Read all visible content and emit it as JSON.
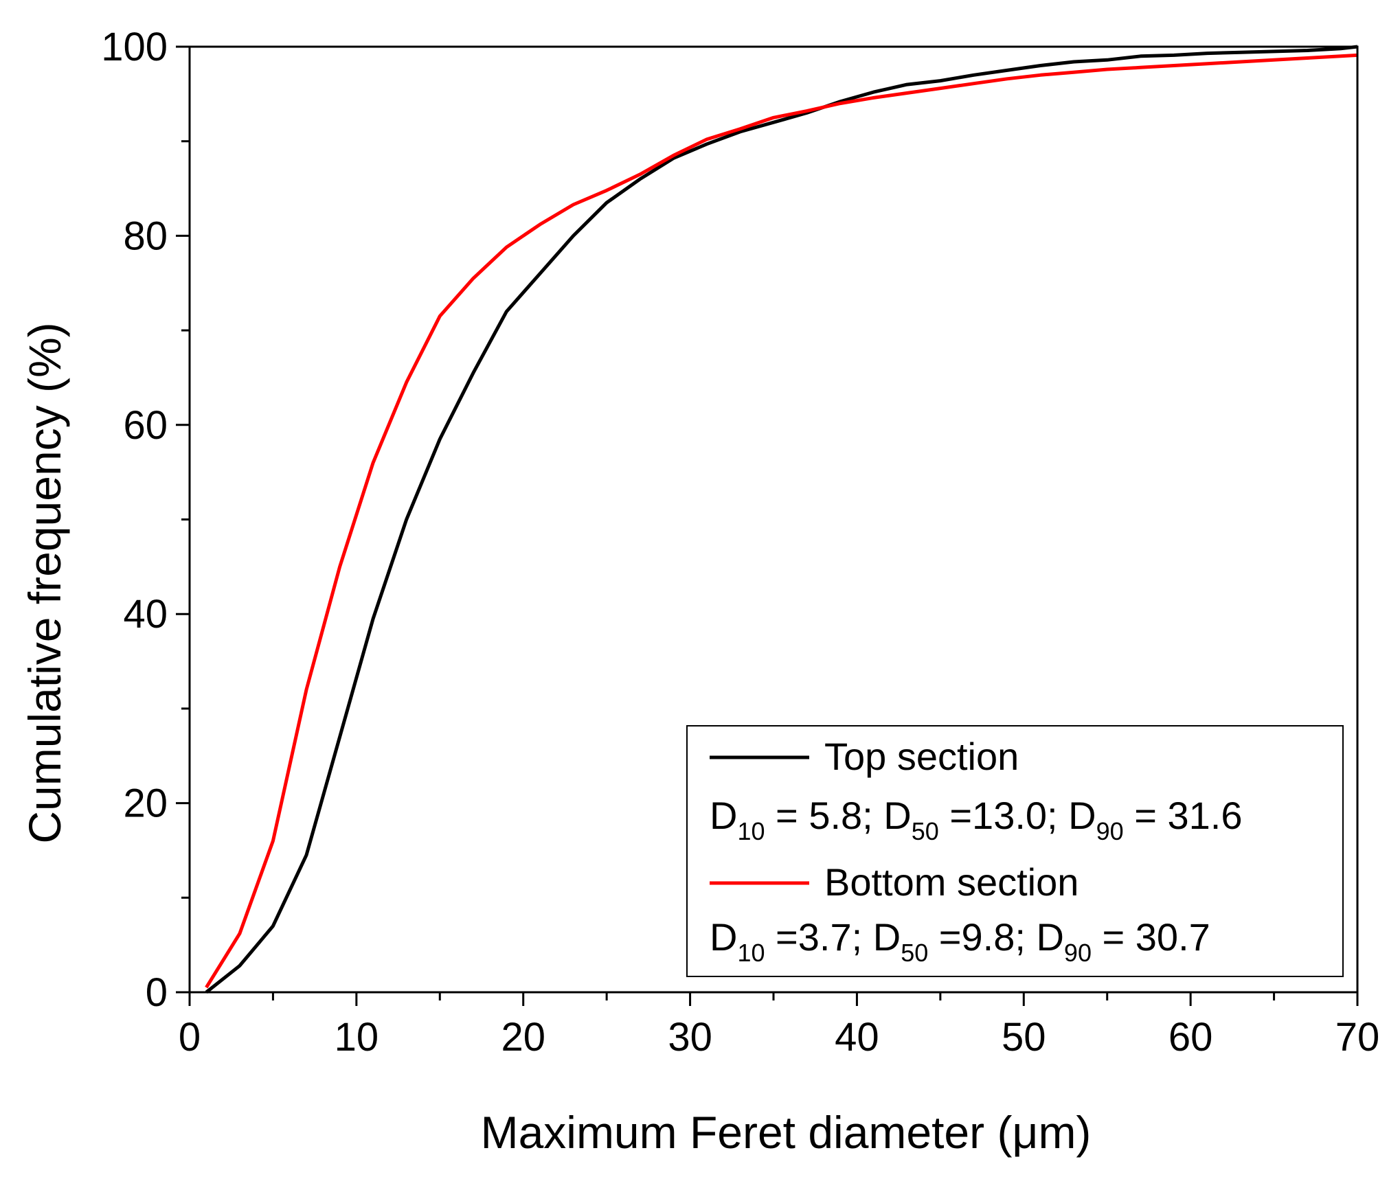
{
  "chart_data": {
    "type": "line",
    "xlabel": "Maximum Feret diameter (μm)",
    "ylabel": "Cumulative frequency (%)",
    "xlim": [
      0,
      70
    ],
    "ylim": [
      0,
      100
    ],
    "x_ticks": [
      0,
      10,
      20,
      30,
      40,
      50,
      60,
      70
    ],
    "y_ticks": [
      0,
      20,
      40,
      60,
      80,
      100
    ],
    "x_minor_step": 5,
    "y_minor_step": 10,
    "grid": false,
    "legend_position": "bottom-right",
    "series": [
      {
        "name": "Top section",
        "color": "#000000",
        "annotation": {
          "d10_label": "D",
          "d10_sub": "10",
          "d10_text": " = 5.8; ",
          "d50_label": "D",
          "d50_sub": "50",
          "d50_text": " =13.0; ",
          "d90_label": "D",
          "d90_sub": "90",
          "d90_text": " = 31.6"
        },
        "x": [
          1,
          3,
          5,
          7,
          9,
          11,
          13,
          15,
          17,
          19,
          21,
          23,
          25,
          27,
          29,
          31,
          33,
          35,
          37,
          39,
          41,
          43,
          45,
          47,
          49,
          51,
          53,
          55,
          57,
          59,
          61,
          63,
          65,
          67,
          69,
          70
        ],
        "y": [
          0,
          2.8,
          7,
          14.5,
          27,
          39.5,
          50,
          58.5,
          65.5,
          72,
          76,
          80,
          83.5,
          86,
          88.2,
          89.7,
          91,
          92,
          93,
          94.2,
          95.2,
          96,
          96.4,
          97,
          97.5,
          98,
          98.4,
          98.6,
          99,
          99.1,
          99.3,
          99.4,
          99.5,
          99.6,
          99.8,
          100
        ]
      },
      {
        "name": "Bottom section",
        "color": "#ff0000",
        "annotation": {
          "d10_label": "D",
          "d10_sub": "10",
          "d10_text": " =3.7; ",
          "d50_label": "D",
          "d50_sub": "50",
          "d50_text": " =9.8; ",
          "d90_label": "D",
          "d90_sub": "90",
          "d90_text": " = 30.7"
        },
        "x": [
          1,
          3,
          5,
          7,
          9,
          11,
          13,
          15,
          17,
          19,
          21,
          23,
          25,
          27,
          29,
          31,
          33,
          35,
          37,
          39,
          41,
          43,
          45,
          47,
          49,
          51,
          53,
          55,
          57,
          59,
          61,
          63,
          65,
          67,
          69,
          70
        ],
        "y": [
          0.5,
          6.2,
          16,
          32,
          45,
          56,
          64.5,
          71.5,
          75.5,
          78.8,
          81.2,
          83.3,
          84.8,
          86.5,
          88.5,
          90.2,
          91.3,
          92.5,
          93.2,
          94,
          94.6,
          95.1,
          95.6,
          96.1,
          96.6,
          97,
          97.3,
          97.6,
          97.8,
          98,
          98.2,
          98.4,
          98.6,
          98.8,
          99,
          99.1
        ]
      }
    ]
  }
}
